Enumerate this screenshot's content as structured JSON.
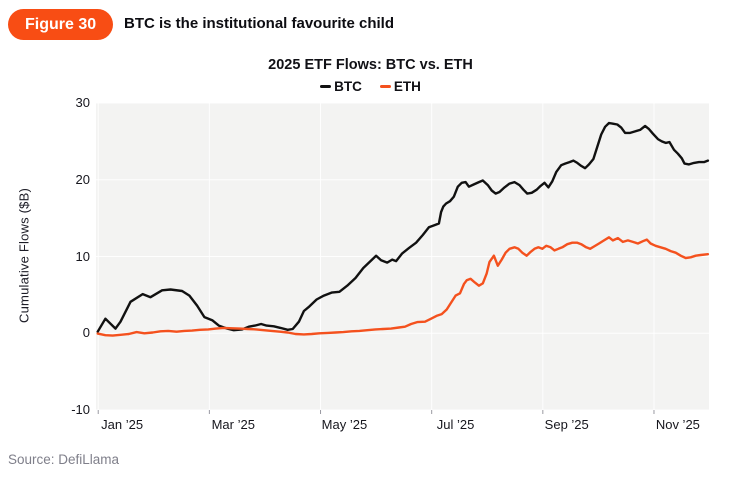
{
  "figure": {
    "badge": "Figure 30",
    "title": "BTC is the institutional favourite child"
  },
  "source": "Source: DefiLlama",
  "colors": {
    "accent_orange": "#f84d14",
    "btc_line": "#111111",
    "eth_line": "#f4511e",
    "plot_bg": "#f3f3f2",
    "grid": "#ffffff",
    "tick_mark": "#9a9aa2",
    "muted_text": "#7f7f8a"
  },
  "chart_data": {
    "type": "line",
    "title": "2025 ETF Flows: BTC vs. ETH",
    "ylabel": "Cumulative Flows ($B)",
    "x_unit": "months_since_2025-01-01",
    "xlim": [
      -0.04,
      10.99
    ],
    "ylim": [
      -10,
      30
    ],
    "grid": true,
    "legend_position": "top-center",
    "y_ticks": [
      30,
      20,
      10,
      0,
      -10
    ],
    "x_gridline_months": [
      0,
      2,
      4,
      6,
      8,
      10
    ],
    "x_tick_labels": [
      "Jan ’25",
      "Mar ’25",
      "May ’25",
      "Jul ’25",
      "Sep ’25",
      "Nov ’25"
    ],
    "x_tick_label_offset_months": 0.43,
    "legend": [
      {
        "name": "BTC",
        "color": "#111111"
      },
      {
        "name": "ETH",
        "color": "#f4511e"
      }
    ],
    "series": [
      {
        "name": "BTC",
        "color": "#111111",
        "points": [
          [
            -0.01,
            0.2
          ],
          [
            0.13,
            1.9
          ],
          [
            0.31,
            0.6
          ],
          [
            0.4,
            1.5
          ],
          [
            0.58,
            4.1
          ],
          [
            0.8,
            5.1
          ],
          [
            0.94,
            4.7
          ],
          [
            1.15,
            5.6
          ],
          [
            1.3,
            5.7
          ],
          [
            1.51,
            5.5
          ],
          [
            1.64,
            4.9
          ],
          [
            1.78,
            3.6
          ],
          [
            1.91,
            2.1
          ],
          [
            2.05,
            1.7
          ],
          [
            2.17,
            1.0
          ],
          [
            2.32,
            0.6
          ],
          [
            2.44,
            0.4
          ],
          [
            2.59,
            0.5
          ],
          [
            2.71,
            0.85
          ],
          [
            2.82,
            1.0
          ],
          [
            2.93,
            1.2
          ],
          [
            3.03,
            1.0
          ],
          [
            3.16,
            0.9
          ],
          [
            3.28,
            0.7
          ],
          [
            3.41,
            0.45
          ],
          [
            3.5,
            0.55
          ],
          [
            3.61,
            1.5
          ],
          [
            3.7,
            2.9
          ],
          [
            3.8,
            3.5
          ],
          [
            3.93,
            4.4
          ],
          [
            4.06,
            4.9
          ],
          [
            4.2,
            5.3
          ],
          [
            4.34,
            5.4
          ],
          [
            4.48,
            6.2
          ],
          [
            4.63,
            7.2
          ],
          [
            4.77,
            8.5
          ],
          [
            4.9,
            9.4
          ],
          [
            5.0,
            10.1
          ],
          [
            5.09,
            9.5
          ],
          [
            5.2,
            9.2
          ],
          [
            5.29,
            9.6
          ],
          [
            5.36,
            9.4
          ],
          [
            5.47,
            10.4
          ],
          [
            5.59,
            11.1
          ],
          [
            5.72,
            11.8
          ],
          [
            5.84,
            12.8
          ],
          [
            5.95,
            13.8
          ],
          [
            6.06,
            14.1
          ],
          [
            6.13,
            14.3
          ],
          [
            6.17,
            15.8
          ],
          [
            6.21,
            16.5
          ],
          [
            6.26,
            16.9
          ],
          [
            6.33,
            17.2
          ],
          [
            6.4,
            17.8
          ],
          [
            6.47,
            19.1
          ],
          [
            6.54,
            19.6
          ],
          [
            6.61,
            19.7
          ],
          [
            6.67,
            19.1
          ],
          [
            6.76,
            19.4
          ],
          [
            6.85,
            19.7
          ],
          [
            6.92,
            19.9
          ],
          [
            7.01,
            19.3
          ],
          [
            7.08,
            18.6
          ],
          [
            7.15,
            18.2
          ],
          [
            7.22,
            18.4
          ],
          [
            7.31,
            19.0
          ],
          [
            7.4,
            19.5
          ],
          [
            7.49,
            19.7
          ],
          [
            7.58,
            19.3
          ],
          [
            7.65,
            18.7
          ],
          [
            7.72,
            18.2
          ],
          [
            7.8,
            18.3
          ],
          [
            7.89,
            18.7
          ],
          [
            7.96,
            19.2
          ],
          [
            8.03,
            19.6
          ],
          [
            8.1,
            19.0
          ],
          [
            8.17,
            19.8
          ],
          [
            8.24,
            21.0
          ],
          [
            8.33,
            21.9
          ],
          [
            8.4,
            22.1
          ],
          [
            8.48,
            22.3
          ],
          [
            8.55,
            22.5
          ],
          [
            8.62,
            22.2
          ],
          [
            8.69,
            21.8
          ],
          [
            8.76,
            21.5
          ],
          [
            8.83,
            22.0
          ],
          [
            8.91,
            22.7
          ],
          [
            8.98,
            24.3
          ],
          [
            9.05,
            25.9
          ],
          [
            9.12,
            26.9
          ],
          [
            9.19,
            27.4
          ],
          [
            9.26,
            27.3
          ],
          [
            9.34,
            27.2
          ],
          [
            9.41,
            26.8
          ],
          [
            9.48,
            26.1
          ],
          [
            9.57,
            26.1
          ],
          [
            9.66,
            26.3
          ],
          [
            9.75,
            26.5
          ],
          [
            9.84,
            27.0
          ],
          [
            9.91,
            26.6
          ],
          [
            9.98,
            26.0
          ],
          [
            10.07,
            25.3
          ],
          [
            10.14,
            25.0
          ],
          [
            10.21,
            24.8
          ],
          [
            10.28,
            24.9
          ],
          [
            10.36,
            23.9
          ],
          [
            10.43,
            23.4
          ],
          [
            10.5,
            22.8
          ],
          [
            10.55,
            22.1
          ],
          [
            10.63,
            22.0
          ],
          [
            10.72,
            22.2
          ],
          [
            10.81,
            22.3
          ],
          [
            10.9,
            22.3
          ],
          [
            10.97,
            22.5
          ]
        ]
      },
      {
        "name": "ETH",
        "color": "#f4511e",
        "points": [
          [
            -0.01,
            -0.05
          ],
          [
            0.13,
            -0.25
          ],
          [
            0.26,
            -0.3
          ],
          [
            0.4,
            -0.2
          ],
          [
            0.55,
            -0.1
          ],
          [
            0.69,
            0.15
          ],
          [
            0.83,
            0.0
          ],
          [
            0.98,
            0.1
          ],
          [
            1.12,
            0.25
          ],
          [
            1.26,
            0.3
          ],
          [
            1.41,
            0.2
          ],
          [
            1.55,
            0.3
          ],
          [
            1.69,
            0.35
          ],
          [
            1.83,
            0.45
          ],
          [
            1.98,
            0.5
          ],
          [
            2.12,
            0.6
          ],
          [
            2.26,
            0.7
          ],
          [
            2.41,
            0.65
          ],
          [
            2.55,
            0.6
          ],
          [
            2.69,
            0.55
          ],
          [
            2.84,
            0.5
          ],
          [
            2.98,
            0.4
          ],
          [
            3.12,
            0.3
          ],
          [
            3.27,
            0.2
          ],
          [
            3.41,
            0.1
          ],
          [
            3.55,
            -0.1
          ],
          [
            3.7,
            -0.15
          ],
          [
            3.84,
            -0.1
          ],
          [
            3.98,
            0.0
          ],
          [
            4.13,
            0.05
          ],
          [
            4.27,
            0.1
          ],
          [
            4.41,
            0.15
          ],
          [
            4.56,
            0.25
          ],
          [
            4.7,
            0.3
          ],
          [
            4.84,
            0.4
          ],
          [
            4.99,
            0.5
          ],
          [
            5.13,
            0.55
          ],
          [
            5.27,
            0.6
          ],
          [
            5.41,
            0.75
          ],
          [
            5.52,
            0.85
          ],
          [
            5.63,
            1.2
          ],
          [
            5.74,
            1.45
          ],
          [
            5.88,
            1.5
          ],
          [
            5.99,
            1.9
          ],
          [
            6.1,
            2.3
          ],
          [
            6.18,
            2.5
          ],
          [
            6.27,
            3.1
          ],
          [
            6.35,
            4.0
          ],
          [
            6.43,
            4.9
          ],
          [
            6.51,
            5.2
          ],
          [
            6.58,
            6.4
          ],
          [
            6.63,
            6.9
          ],
          [
            6.7,
            7.1
          ],
          [
            6.78,
            6.6
          ],
          [
            6.85,
            6.2
          ],
          [
            6.92,
            6.5
          ],
          [
            6.99,
            7.8
          ],
          [
            7.04,
            9.3
          ],
          [
            7.12,
            10.1
          ],
          [
            7.19,
            8.8
          ],
          [
            7.26,
            9.6
          ],
          [
            7.33,
            10.5
          ],
          [
            7.4,
            11.0
          ],
          [
            7.49,
            11.2
          ],
          [
            7.56,
            11.0
          ],
          [
            7.63,
            10.5
          ],
          [
            7.71,
            10.1
          ],
          [
            7.78,
            10.6
          ],
          [
            7.85,
            11.0
          ],
          [
            7.92,
            11.2
          ],
          [
            7.99,
            11.0
          ],
          [
            8.06,
            11.4
          ],
          [
            8.14,
            11.2
          ],
          [
            8.21,
            10.8
          ],
          [
            8.28,
            11.0
          ],
          [
            8.35,
            11.2
          ],
          [
            8.44,
            11.6
          ],
          [
            8.53,
            11.8
          ],
          [
            8.62,
            11.8
          ],
          [
            8.69,
            11.6
          ],
          [
            8.78,
            11.2
          ],
          [
            8.85,
            11.0
          ],
          [
            8.92,
            11.3
          ],
          [
            9.01,
            11.7
          ],
          [
            9.1,
            12.1
          ],
          [
            9.19,
            12.5
          ],
          [
            9.26,
            12.1
          ],
          [
            9.35,
            12.4
          ],
          [
            9.44,
            11.9
          ],
          [
            9.53,
            12.1
          ],
          [
            9.62,
            11.9
          ],
          [
            9.71,
            11.7
          ],
          [
            9.8,
            12.0
          ],
          [
            9.87,
            12.2
          ],
          [
            9.94,
            11.7
          ],
          [
            10.03,
            11.4
          ],
          [
            10.12,
            11.2
          ],
          [
            10.21,
            11.0
          ],
          [
            10.3,
            10.7
          ],
          [
            10.39,
            10.5
          ],
          [
            10.48,
            10.1
          ],
          [
            10.57,
            9.8
          ],
          [
            10.66,
            9.9
          ],
          [
            10.75,
            10.1
          ],
          [
            10.84,
            10.2
          ],
          [
            10.97,
            10.3
          ]
        ]
      }
    ]
  }
}
